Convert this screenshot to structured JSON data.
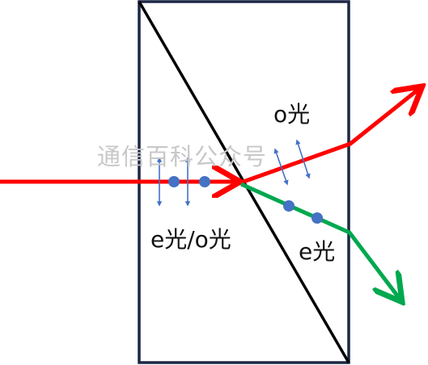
{
  "labels": {
    "o_ray": "o光",
    "e_o_ray": "e光/o光",
    "e_ray": "e光"
  },
  "watermark": "通信百科公众号",
  "colors": {
    "prism_border": "#1b2745",
    "diagonal": "#000000",
    "o_ray": "#ff0000",
    "e_ray": "#00a84f",
    "polarization": "#4472c4"
  }
}
